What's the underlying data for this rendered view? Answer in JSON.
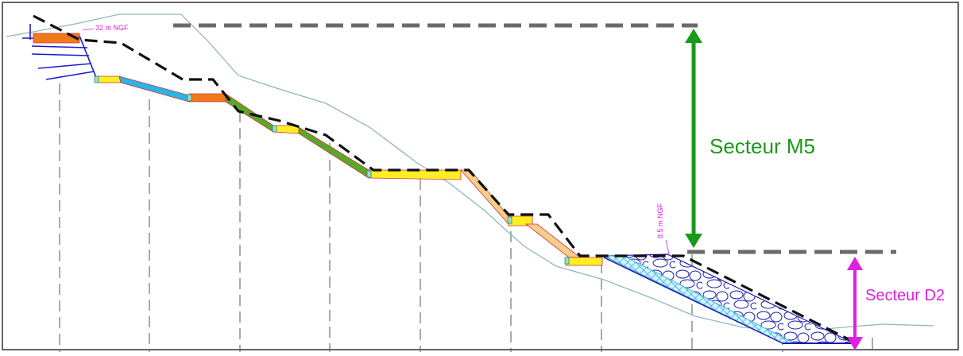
{
  "labels": {
    "top_elevation": "32 m NGF",
    "bottom_elevation": "8.5 m NGF",
    "sector_upper": "Secteur M5",
    "sector_lower": "Secteur D2"
  },
  "colors": {
    "sector_upper": "#1a9a1a",
    "sector_lower": "#e020e0",
    "elevation_text": "#e020e0",
    "profile_dashed": "#111111",
    "reference_dashed": "#6b6b6b",
    "terrain": "#8fb8b8",
    "orange": "#f07a1a",
    "yellow": "#ffee22",
    "blue": "#2ab4e6",
    "green": "#5aa82a",
    "tan": "#f5cf8a",
    "rock": "#1a1aa8"
  }
}
